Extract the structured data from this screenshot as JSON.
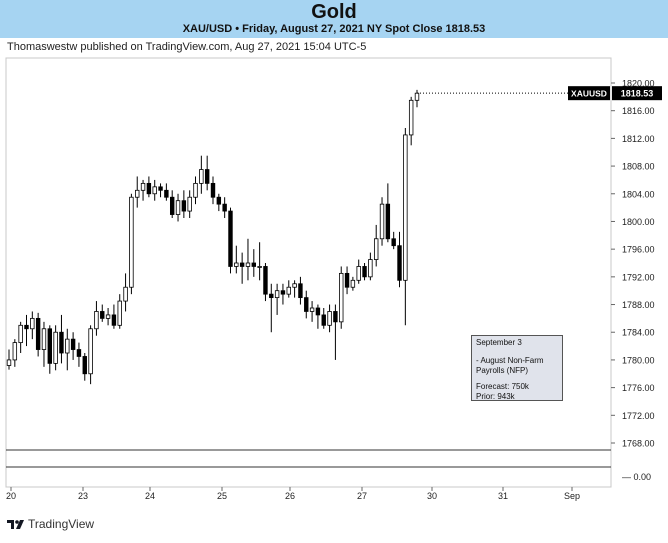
{
  "header": {
    "title": "Gold",
    "subtitle": "XAU/USD • Friday, August 27, 2021 NY Spot Close 1818.53",
    "published": "Thomaswestw published on TradingView.com, Aug 27, 2021 15:04 UTC-5"
  },
  "footer": {
    "brand": "TradingView"
  },
  "note": {
    "line1": "September 3",
    "line2": "- August Non-Farm",
    "line3": "Payrolls (NFP)",
    "line4": "Forecast: 750k",
    "line5": "Prior: 943k"
  },
  "price_tag": {
    "symbol": "XAUUSD",
    "price": "1818.53"
  },
  "colors": {
    "up": "#ffffff",
    "down": "#000000",
    "header_bg": "#a6d4f2",
    "grid": "#e0e0e0",
    "tag_bg": "#000000"
  },
  "chart_data": {
    "type": "candlestick",
    "x_tick_labels": [
      "20",
      "23",
      "24",
      "25",
      "26",
      "27",
      "30",
      "31",
      "Sep"
    ],
    "y_tick_labels": [
      "1820.00",
      "1816.00",
      "1812.00",
      "1808.00",
      "1804.00",
      "1800.00",
      "1796.00",
      "1792.00",
      "1788.00",
      "1784.00",
      "1780.00",
      "1776.00",
      "1772.00",
      "1768.00"
    ],
    "ylim": [
      1766,
      1822
    ],
    "lower_pane_tick": "0.00",
    "last_price": 1818.53,
    "candles": [
      {
        "i": 0,
        "o": 1779.2,
        "h": 1781.5,
        "l": 1778.6,
        "c": 1780.0
      },
      {
        "i": 1,
        "o": 1780.0,
        "h": 1783.0,
        "l": 1779.0,
        "c": 1782.5
      },
      {
        "i": 2,
        "o": 1782.5,
        "h": 1785.5,
        "l": 1781.0,
        "c": 1785.0
      },
      {
        "i": 3,
        "o": 1785.0,
        "h": 1786.5,
        "l": 1782.0,
        "c": 1784.5
      },
      {
        "i": 4,
        "o": 1784.5,
        "h": 1787.0,
        "l": 1783.0,
        "c": 1786.0
      },
      {
        "i": 5,
        "o": 1786.0,
        "h": 1786.8,
        "l": 1780.5,
        "c": 1781.5
      },
      {
        "i": 6,
        "o": 1781.5,
        "h": 1785.5,
        "l": 1779.0,
        "c": 1784.5
      },
      {
        "i": 7,
        "o": 1784.5,
        "h": 1785.0,
        "l": 1778.0,
        "c": 1779.5
      },
      {
        "i": 8,
        "o": 1779.5,
        "h": 1785.0,
        "l": 1778.5,
        "c": 1784.0
      },
      {
        "i": 9,
        "o": 1784.0,
        "h": 1786.5,
        "l": 1779.5,
        "c": 1781.0
      },
      {
        "i": 10,
        "o": 1781.0,
        "h": 1784.5,
        "l": 1778.5,
        "c": 1783.0
      },
      {
        "i": 11,
        "o": 1783.0,
        "h": 1784.0,
        "l": 1780.0,
        "c": 1781.5
      },
      {
        "i": 12,
        "o": 1781.5,
        "h": 1782.5,
        "l": 1779.0,
        "c": 1780.5
      },
      {
        "i": 13,
        "o": 1780.5,
        "h": 1781.0,
        "l": 1777.0,
        "c": 1778.0
      },
      {
        "i": 14,
        "o": 1778.0,
        "h": 1785.0,
        "l": 1776.5,
        "c": 1784.5
      },
      {
        "i": 15,
        "o": 1784.5,
        "h": 1788.5,
        "l": 1783.5,
        "c": 1787.0
      },
      {
        "i": 16,
        "o": 1787.0,
        "h": 1788.0,
        "l": 1785.5,
        "c": 1786.0
      },
      {
        "i": 17,
        "o": 1786.0,
        "h": 1787.5,
        "l": 1785.0,
        "c": 1786.5
      },
      {
        "i": 18,
        "o": 1786.5,
        "h": 1788.0,
        "l": 1784.5,
        "c": 1785.0
      },
      {
        "i": 19,
        "o": 1785.0,
        "h": 1789.5,
        "l": 1784.5,
        "c": 1788.5
      },
      {
        "i": 20,
        "o": 1788.5,
        "h": 1792.5,
        "l": 1787.0,
        "c": 1790.5
      },
      {
        "i": 21,
        "o": 1790.5,
        "h": 1804.0,
        "l": 1789.5,
        "c": 1803.5
      },
      {
        "i": 22,
        "o": 1803.5,
        "h": 1806.5,
        "l": 1802.0,
        "c": 1804.5
      },
      {
        "i": 23,
        "o": 1804.5,
        "h": 1806.0,
        "l": 1803.0,
        "c": 1805.5
      },
      {
        "i": 24,
        "o": 1805.5,
        "h": 1806.5,
        "l": 1803.5,
        "c": 1804.0
      },
      {
        "i": 25,
        "o": 1804.0,
        "h": 1806.0,
        "l": 1803.0,
        "c": 1805.0
      },
      {
        "i": 26,
        "o": 1805.0,
        "h": 1805.5,
        "l": 1803.5,
        "c": 1804.5
      },
      {
        "i": 27,
        "o": 1804.5,
        "h": 1805.5,
        "l": 1803.0,
        "c": 1803.5
      },
      {
        "i": 28,
        "o": 1803.5,
        "h": 1804.5,
        "l": 1800.5,
        "c": 1801.0
      },
      {
        "i": 29,
        "o": 1801.0,
        "h": 1804.0,
        "l": 1800.0,
        "c": 1803.0
      },
      {
        "i": 30,
        "o": 1803.0,
        "h": 1804.5,
        "l": 1800.5,
        "c": 1801.5
      },
      {
        "i": 31,
        "o": 1801.5,
        "h": 1804.5,
        "l": 1800.5,
        "c": 1803.5
      },
      {
        "i": 32,
        "o": 1803.5,
        "h": 1806.5,
        "l": 1802.5,
        "c": 1805.5
      },
      {
        "i": 33,
        "o": 1805.5,
        "h": 1809.5,
        "l": 1804.0,
        "c": 1807.5
      },
      {
        "i": 34,
        "o": 1807.5,
        "h": 1809.5,
        "l": 1804.5,
        "c": 1805.5
      },
      {
        "i": 35,
        "o": 1805.5,
        "h": 1806.5,
        "l": 1802.5,
        "c": 1803.5
      },
      {
        "i": 36,
        "o": 1803.5,
        "h": 1804.0,
        "l": 1801.5,
        "c": 1802.5
      },
      {
        "i": 37,
        "o": 1802.5,
        "h": 1803.5,
        "l": 1800.5,
        "c": 1801.5
      },
      {
        "i": 38,
        "o": 1801.5,
        "h": 1802.0,
        "l": 1792.5,
        "c": 1793.5
      },
      {
        "i": 39,
        "o": 1793.5,
        "h": 1796.5,
        "l": 1792.5,
        "c": 1794.0
      },
      {
        "i": 40,
        "o": 1794.0,
        "h": 1795.5,
        "l": 1791.0,
        "c": 1793.5
      },
      {
        "i": 41,
        "o": 1793.5,
        "h": 1797.5,
        "l": 1791.5,
        "c": 1794.0
      },
      {
        "i": 42,
        "o": 1794.0,
        "h": 1796.0,
        "l": 1792.0,
        "c": 1793.5
      },
      {
        "i": 43,
        "o": 1793.5,
        "h": 1797.0,
        "l": 1791.5,
        "c": 1793.5
      },
      {
        "i": 44,
        "o": 1793.5,
        "h": 1794.0,
        "l": 1788.5,
        "c": 1789.5
      },
      {
        "i": 45,
        "o": 1789.5,
        "h": 1791.0,
        "l": 1784.0,
        "c": 1789.0
      },
      {
        "i": 46,
        "o": 1789.0,
        "h": 1791.0,
        "l": 1786.5,
        "c": 1790.0
      },
      {
        "i": 47,
        "o": 1790.0,
        "h": 1791.0,
        "l": 1788.0,
        "c": 1789.5
      },
      {
        "i": 48,
        "o": 1789.5,
        "h": 1791.5,
        "l": 1789.0,
        "c": 1790.5
      },
      {
        "i": 49,
        "o": 1790.5,
        "h": 1791.5,
        "l": 1789.0,
        "c": 1791.0
      },
      {
        "i": 50,
        "o": 1791.0,
        "h": 1792.0,
        "l": 1788.0,
        "c": 1789.0
      },
      {
        "i": 51,
        "o": 1789.0,
        "h": 1790.0,
        "l": 1786.0,
        "c": 1787.0
      },
      {
        "i": 52,
        "o": 1787.0,
        "h": 1788.5,
        "l": 1785.5,
        "c": 1787.5
      },
      {
        "i": 53,
        "o": 1787.5,
        "h": 1788.0,
        "l": 1784.5,
        "c": 1786.5
      },
      {
        "i": 54,
        "o": 1786.5,
        "h": 1787.5,
        "l": 1784.5,
        "c": 1785.0
      },
      {
        "i": 55,
        "o": 1785.0,
        "h": 1788.0,
        "l": 1784.0,
        "c": 1787.0
      },
      {
        "i": 56,
        "o": 1787.0,
        "h": 1788.0,
        "l": 1780.0,
        "c": 1785.5
      },
      {
        "i": 57,
        "o": 1785.5,
        "h": 1793.5,
        "l": 1784.5,
        "c": 1792.5
      },
      {
        "i": 58,
        "o": 1792.5,
        "h": 1793.5,
        "l": 1789.5,
        "c": 1790.5
      },
      {
        "i": 59,
        "o": 1790.5,
        "h": 1792.0,
        "l": 1790.0,
        "c": 1791.5
      },
      {
        "i": 60,
        "o": 1791.5,
        "h": 1794.5,
        "l": 1791.0,
        "c": 1793.5
      },
      {
        "i": 61,
        "o": 1793.5,
        "h": 1794.0,
        "l": 1791.5,
        "c": 1792.0
      },
      {
        "i": 62,
        "o": 1792.0,
        "h": 1795.5,
        "l": 1791.5,
        "c": 1794.5
      },
      {
        "i": 63,
        "o": 1794.5,
        "h": 1799.5,
        "l": 1793.5,
        "c": 1797.5
      },
      {
        "i": 64,
        "o": 1797.5,
        "h": 1803.5,
        "l": 1796.5,
        "c": 1802.5
      },
      {
        "i": 65,
        "o": 1802.5,
        "h": 1805.5,
        "l": 1797.0,
        "c": 1797.5
      },
      {
        "i": 66,
        "o": 1797.5,
        "h": 1798.5,
        "l": 1796.0,
        "c": 1796.5
      },
      {
        "i": 67,
        "o": 1796.5,
        "h": 1798.5,
        "l": 1790.5,
        "c": 1791.5
      },
      {
        "i": 68,
        "o": 1791.5,
        "h": 1813.5,
        "l": 1785.0,
        "c": 1812.5
      },
      {
        "i": 69,
        "o": 1812.5,
        "h": 1818.0,
        "l": 1811.0,
        "c": 1817.5
      },
      {
        "i": 70,
        "o": 1817.5,
        "h": 1819.0,
        "l": 1816.5,
        "c": 1818.53
      }
    ]
  }
}
